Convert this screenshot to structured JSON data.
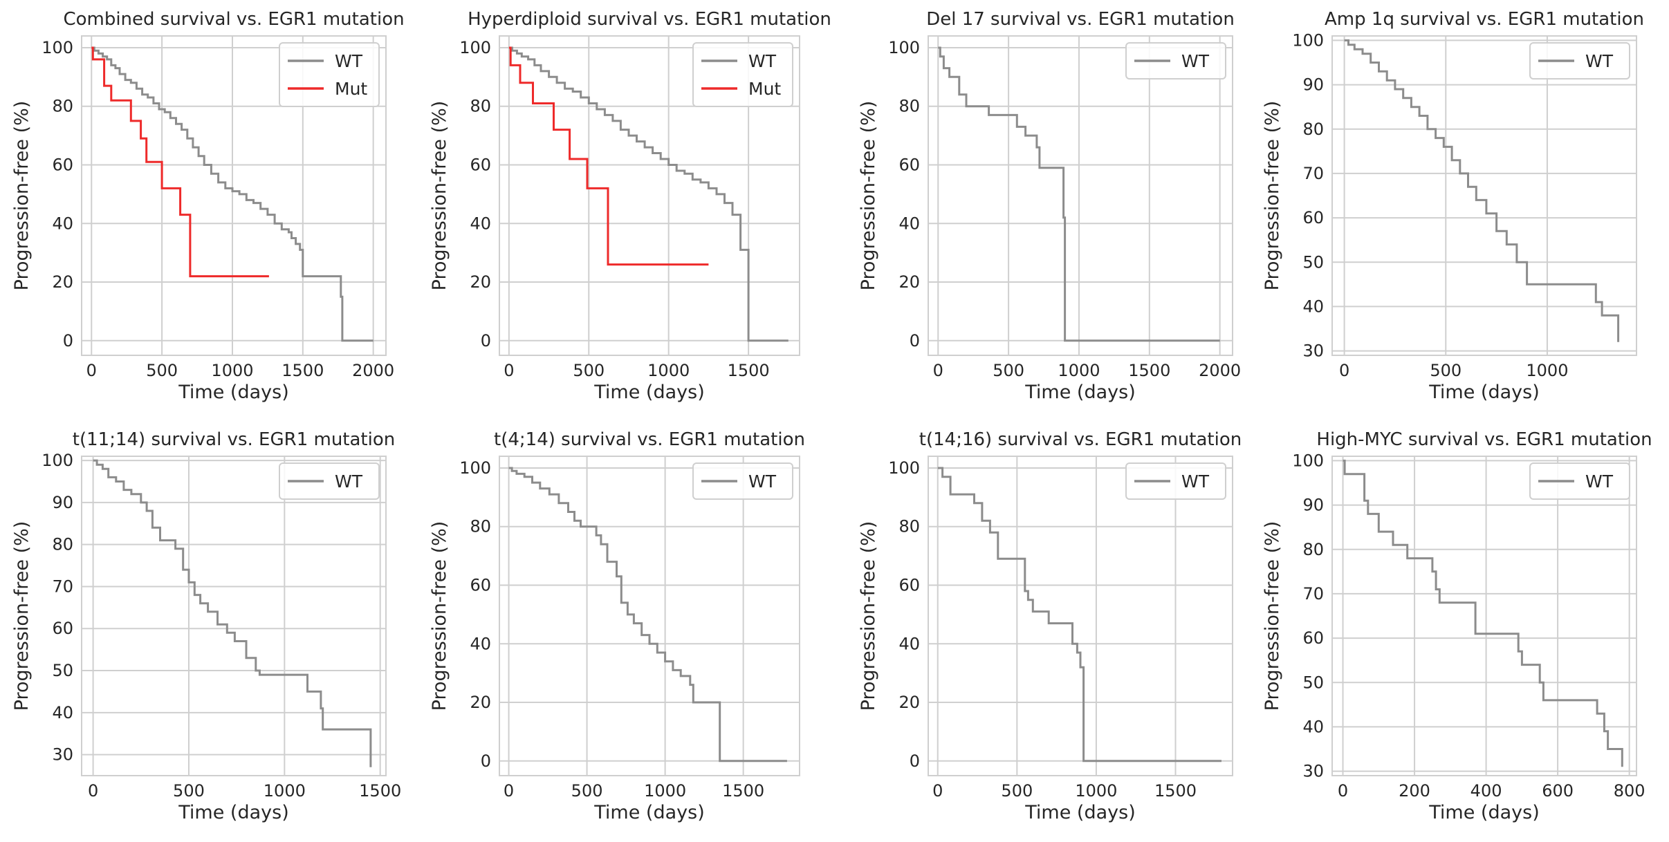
{
  "chart_data": [
    {
      "type": "line",
      "step": true,
      "title": "Combined survival vs. EGR1 mutation",
      "xlabel": "Time (days)",
      "ylabel": "Progression-free (%)",
      "xlim": [
        -70,
        2090
      ],
      "ylim": [
        -5,
        104
      ],
      "xticks": [
        0,
        500,
        1000,
        1500,
        2000
      ],
      "yticks": [
        0,
        20,
        40,
        60,
        80,
        100
      ],
      "series": [
        {
          "name": "WT",
          "color": "#8c8c8c",
          "x": [
            0,
            20,
            50,
            80,
            110,
            140,
            170,
            200,
            240,
            280,
            320,
            360,
            400,
            440,
            480,
            520,
            560,
            600,
            640,
            680,
            720,
            760,
            800,
            850,
            900,
            950,
            1000,
            1050,
            1100,
            1150,
            1200,
            1250,
            1300,
            1350,
            1400,
            1420,
            1450,
            1480,
            1500,
            1760,
            1770,
            1780,
            2000
          ],
          "y": [
            100,
            99,
            98,
            97,
            96,
            94,
            93,
            91,
            89,
            88,
            86,
            84,
            83,
            81,
            79,
            78,
            76,
            74,
            72,
            69,
            66,
            63,
            60,
            57,
            54,
            52,
            51,
            50,
            48,
            47,
            45,
            43,
            40,
            38,
            37,
            35,
            33,
            31,
            22,
            22,
            15,
            0,
            0
          ]
        },
        {
          "name": "Mut",
          "color": "#ee2a2a",
          "x": [
            0,
            10,
            90,
            140,
            280,
            350,
            390,
            500,
            630,
            700,
            1260
          ],
          "y": [
            100,
            96,
            87,
            82,
            75,
            69,
            61,
            52,
            43,
            22,
            22
          ]
        }
      ],
      "legend": [
        "WT",
        "Mut"
      ],
      "legend_position": "top-right"
    },
    {
      "type": "line",
      "step": true,
      "title": "Hyperdiploid survival vs. EGR1 mutation",
      "xlabel": "Time (days)",
      "ylabel": "Progression-free (%)",
      "xlim": [
        -60,
        1820
      ],
      "ylim": [
        -5,
        104
      ],
      "xticks": [
        0,
        500,
        1000,
        1500
      ],
      "yticks": [
        0,
        20,
        40,
        60,
        80,
        100
      ],
      "series": [
        {
          "name": "WT",
          "color": "#8c8c8c",
          "x": [
            0,
            20,
            50,
            80,
            120,
            160,
            200,
            250,
            300,
            350,
            400,
            450,
            500,
            550,
            600,
            650,
            700,
            750,
            800,
            850,
            900,
            950,
            1000,
            1050,
            1100,
            1150,
            1200,
            1250,
            1300,
            1350,
            1400,
            1450,
            1500,
            1750
          ],
          "y": [
            100,
            99,
            98,
            97,
            96,
            94,
            92,
            90,
            88,
            86,
            85,
            83,
            81,
            79,
            77,
            75,
            72,
            70,
            68,
            66,
            64,
            62,
            60,
            58,
            57,
            55,
            54,
            52,
            50,
            47,
            43,
            31,
            0,
            0
          ]
        },
        {
          "name": "Mut",
          "color": "#ee2a2a",
          "x": [
            0,
            10,
            70,
            150,
            280,
            380,
            490,
            620,
            1250
          ],
          "y": [
            100,
            94,
            88,
            81,
            72,
            62,
            52,
            26,
            26
          ]
        }
      ],
      "legend": [
        "WT",
        "Mut"
      ],
      "legend_position": "top-right"
    },
    {
      "type": "line",
      "step": true,
      "title": "Del 17 survival vs. EGR1 mutation",
      "xlabel": "Time (days)",
      "ylabel": "Progression-free (%)",
      "xlim": [
        -70,
        2090
      ],
      "ylim": [
        -5,
        104
      ],
      "xticks": [
        0,
        500,
        1000,
        1500,
        2000
      ],
      "yticks": [
        0,
        20,
        40,
        60,
        80,
        100
      ],
      "series": [
        {
          "name": "WT",
          "color": "#8c8c8c",
          "x": [
            0,
            15,
            40,
            80,
            150,
            200,
            360,
            560,
            620,
            700,
            720,
            890,
            900,
            910,
            2000
          ],
          "y": [
            100,
            97,
            93,
            90,
            84,
            80,
            77,
            73,
            70,
            66,
            59,
            42,
            0,
            0,
            0
          ]
        }
      ],
      "legend": [
        "WT"
      ],
      "legend_position": "top-right"
    },
    {
      "type": "line",
      "step": true,
      "title": "Amp 1q survival vs. EGR1 mutation",
      "xlabel": "Time (days)",
      "ylabel": "Progression-free (%)",
      "xlim": [
        -60,
        1440
      ],
      "ylim": [
        29,
        101
      ],
      "xticks": [
        0,
        500,
        1000
      ],
      "yticks": [
        30,
        40,
        50,
        60,
        70,
        80,
        90,
        100
      ],
      "series": [
        {
          "name": "WT",
          "color": "#8c8c8c",
          "x": [
            0,
            20,
            50,
            90,
            130,
            170,
            210,
            250,
            290,
            330,
            370,
            410,
            450,
            490,
            530,
            570,
            610,
            650,
            700,
            750,
            800,
            850,
            900,
            1180,
            1240,
            1270,
            1350
          ],
          "y": [
            100,
            99,
            98,
            97,
            95,
            93,
            91,
            89,
            87,
            85,
            83,
            80,
            78,
            76,
            73,
            70,
            67,
            64,
            61,
            57,
            54,
            50,
            45,
            45,
            41,
            38,
            32
          ]
        }
      ],
      "legend": [
        "WT"
      ],
      "legend_position": "top-right"
    },
    {
      "type": "line",
      "step": true,
      "title": "t(11;14) survival vs. EGR1 mutation",
      "xlabel": "Time (days)",
      "ylabel": "Progression-free (%)",
      "xlim": [
        -60,
        1530
      ],
      "ylim": [
        25,
        101
      ],
      "xticks": [
        0,
        500,
        1000,
        1500
      ],
      "yticks": [
        30,
        40,
        50,
        60,
        70,
        80,
        90,
        100
      ],
      "series": [
        {
          "name": "WT",
          "color": "#8c8c8c",
          "x": [
            0,
            20,
            50,
            80,
            120,
            160,
            200,
            250,
            280,
            310,
            350,
            430,
            470,
            500,
            530,
            560,
            600,
            650,
            700,
            740,
            800,
            850,
            870,
            1050,
            1120,
            1190,
            1200,
            1450
          ],
          "y": [
            100,
            99,
            98,
            96,
            95,
            93,
            92,
            90,
            88,
            84,
            81,
            79,
            74,
            71,
            68,
            66,
            64,
            61,
            59,
            57,
            53,
            50,
            49,
            49,
            45,
            41,
            36,
            27
          ]
        }
      ],
      "legend": [
        "WT"
      ],
      "legend_position": "top-right"
    },
    {
      "type": "line",
      "step": true,
      "title": "t(4;14) survival vs. EGR1 mutation",
      "xlabel": "Time (days)",
      "ylabel": "Progression-free (%)",
      "xlim": [
        -60,
        1860
      ],
      "ylim": [
        -5,
        104
      ],
      "xticks": [
        0,
        500,
        1000,
        1500
      ],
      "yticks": [
        0,
        20,
        40,
        60,
        80,
        100
      ],
      "series": [
        {
          "name": "WT",
          "color": "#8c8c8c",
          "x": [
            0,
            20,
            50,
            100,
            150,
            200,
            260,
            320,
            380,
            420,
            460,
            560,
            590,
            630,
            690,
            720,
            760,
            800,
            850,
            900,
            950,
            1000,
            1050,
            1100,
            1160,
            1180,
            1340,
            1350,
            1780
          ],
          "y": [
            100,
            99,
            98,
            97,
            95,
            93,
            91,
            88,
            85,
            82,
            80,
            77,
            74,
            68,
            63,
            54,
            50,
            47,
            43,
            40,
            37,
            34,
            31,
            29,
            26,
            20,
            20,
            0,
            0
          ]
        }
      ],
      "legend": [
        "WT"
      ],
      "legend_position": "top-right"
    },
    {
      "type": "line",
      "step": true,
      "title": "t(14;16) survival vs. EGR1 mutation",
      "xlabel": "Time (days)",
      "ylabel": "Progression-free (%)",
      "xlim": [
        -60,
        1860
      ],
      "ylim": [
        -5,
        104
      ],
      "xticks": [
        0,
        500,
        1000,
        1500
      ],
      "yticks": [
        0,
        20,
        40,
        60,
        80,
        100
      ],
      "series": [
        {
          "name": "WT",
          "color": "#8c8c8c",
          "x": [
            0,
            30,
            80,
            230,
            280,
            330,
            380,
            550,
            570,
            600,
            700,
            850,
            880,
            900,
            920,
            1790
          ],
          "y": [
            100,
            97,
            91,
            88,
            82,
            78,
            69,
            58,
            55,
            51,
            47,
            40,
            37,
            32,
            0,
            0
          ]
        }
      ],
      "legend": [
        "WT"
      ],
      "legend_position": "top-right"
    },
    {
      "type": "line",
      "step": true,
      "title": "High-MYC survival vs. EGR1 mutation",
      "xlabel": "Time (days)",
      "ylabel": "Progression-free (%)",
      "xlim": [
        -30,
        820
      ],
      "ylim": [
        29,
        101
      ],
      "xticks": [
        0,
        200,
        400,
        600,
        800
      ],
      "yticks": [
        30,
        40,
        50,
        60,
        70,
        80,
        90,
        100
      ],
      "series": [
        {
          "name": "WT",
          "color": "#8c8c8c",
          "x": [
            0,
            5,
            60,
            70,
            100,
            140,
            180,
            250,
            260,
            270,
            370,
            490,
            500,
            550,
            560,
            710,
            730,
            740,
            780
          ],
          "y": [
            100,
            97,
            91,
            88,
            84,
            81,
            78,
            75,
            71,
            68,
            61,
            57,
            54,
            50,
            46,
            43,
            39,
            35,
            31
          ]
        }
      ],
      "legend": [
        "WT"
      ],
      "legend_position": "top-right"
    }
  ]
}
